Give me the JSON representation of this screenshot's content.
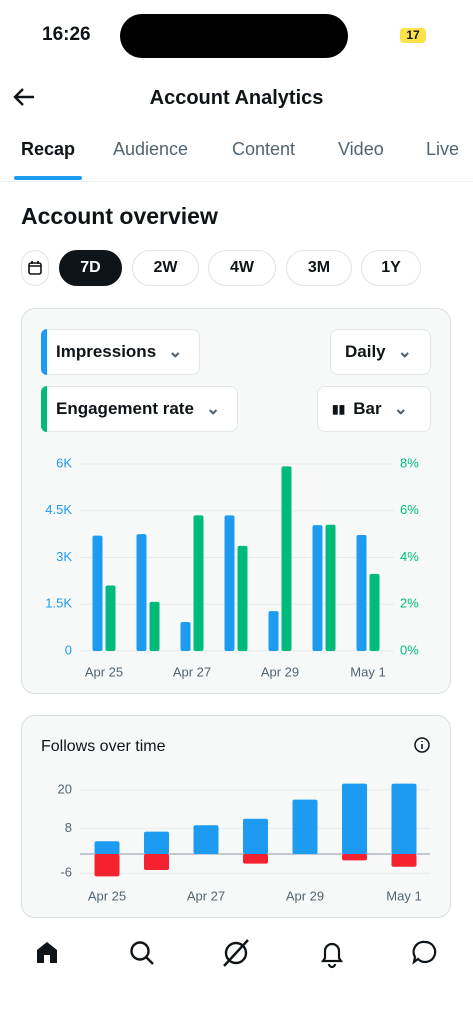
{
  "status_bar": {
    "time": "16:26",
    "battery": "17"
  },
  "header": {
    "title": "Account Analytics"
  },
  "tabs": [
    "Recap",
    "Audience",
    "Content",
    "Video",
    "Live"
  ],
  "section_title": "Account overview",
  "periods": [
    "7D",
    "2W",
    "4W",
    "3M",
    "1Y"
  ],
  "controls": {
    "interval": "Daily",
    "chart_kind": "Bar"
  },
  "chart_data": [
    {
      "type": "bar",
      "barmode": "grouped",
      "categories": [
        "Apr 25",
        null,
        "Apr 27",
        null,
        "Apr 29",
        null,
        "May 1"
      ],
      "series": [
        {
          "name": "Impressions",
          "color": "#1d9bf0",
          "values": [
            3700,
            3750,
            930,
            4350,
            1280,
            4040,
            3720
          ]
        },
        {
          "name": "Engagement rate",
          "color": "#00ba7c",
          "axis": "y2",
          "values": [
            2.8,
            2.1,
            5.8,
            4.5,
            7.9,
            5.4,
            3.3
          ]
        }
      ],
      "ylim": [
        0,
        6000
      ],
      "yticks": [
        0,
        {
          "value": 1500,
          "label": "1.5K"
        },
        {
          "value": 3000,
          "label": "3K"
        },
        {
          "value": 4500,
          "label": "4.5K"
        },
        {
          "value": 6000,
          "label": "6K"
        }
      ],
      "y2lim": [
        0,
        8
      ],
      "y2ticks": [
        {
          "value": 0,
          "label": "0%"
        },
        {
          "value": 2,
          "label": "2%"
        },
        {
          "value": 4,
          "label": "4%"
        },
        {
          "value": 6,
          "label": "6%"
        },
        {
          "value": 8,
          "label": "8%"
        }
      ],
      "grid": true
    },
    {
      "type": "bar",
      "barmode": "relative",
      "title": "Follows over time",
      "categories": [
        "Apr 25",
        null,
        "Apr 27",
        null,
        "Apr 29",
        null,
        "May 1"
      ],
      "series": [
        {
          "color": "#1d9bf0",
          "values": [
            4,
            7,
            9,
            11,
            17,
            22,
            22
          ]
        },
        {
          "color": "#f4212e",
          "values": [
            -7,
            -5,
            0,
            -3,
            0,
            -2,
            -4
          ]
        }
      ],
      "ylim": [
        -8,
        22
      ],
      "yticks": [
        -6,
        8,
        20
      ],
      "grid": true
    }
  ]
}
